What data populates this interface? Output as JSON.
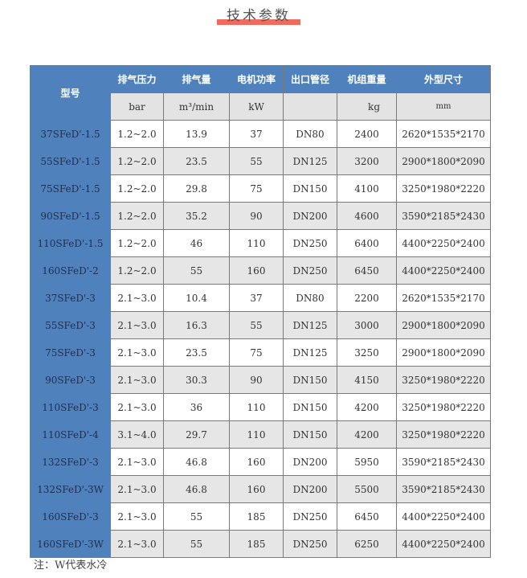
{
  "title": "技术参数",
  "colors": {
    "header": "#4f81bd",
    "accent": "#ee6b5d",
    "row_alt": "#e6e6e6"
  },
  "table": {
    "headers": [
      "型号",
      "排气压力",
      "排气量",
      "电机功率",
      "出口管径",
      "机组重量",
      "外型尺寸"
    ],
    "units": [
      "bar",
      "m³/min",
      "kW",
      "",
      "kg",
      "mm"
    ],
    "rows": [
      [
        "37SFeD'-1.5",
        "1.2~2.0",
        "13.9",
        "37",
        "DN80",
        "2400",
        "2620*1535*2170"
      ],
      [
        "55SFeD'-1.5",
        "1.2~2.0",
        "23.5",
        "55",
        "DN125",
        "3200",
        "2900*1800*2090"
      ],
      [
        "75SFeD'-1.5",
        "1.2~2.0",
        "29.8",
        "75",
        "DN150",
        "4100",
        "3250*1980*2220"
      ],
      [
        "90SFeD'-1.5",
        "1.2~2.0",
        "35.2",
        "90",
        "DN200",
        "4600",
        "3590*2185*2430"
      ],
      [
        "110SFeD'-1.5",
        "1.2~2.0",
        "46",
        "110",
        "DN250",
        "6400",
        "4400*2250*2400"
      ],
      [
        "160SFeD'-2",
        "1.2~2.0",
        "55",
        "160",
        "DN250",
        "6450",
        "4400*2250*2400"
      ],
      [
        "37SFeD'-3",
        "2.1~3.0",
        "10.4",
        "37",
        "DN80",
        "2200",
        "2620*1535*2170"
      ],
      [
        "55SFeD'-3",
        "2.1~3.0",
        "16.3",
        "55",
        "DN125",
        "3000",
        "2900*1800*2090"
      ],
      [
        "75SFeD'-3",
        "2.1~3.0",
        "23.5",
        "75",
        "DN125",
        "3250",
        "2900*1800*2090"
      ],
      [
        "90SFeD'-3",
        "2.1~3.0",
        "30.3",
        "90",
        "DN150",
        "4150",
        "3250*1980*2220"
      ],
      [
        "110SFeD'-3",
        "2.1~3.0",
        "36",
        "110",
        "DN150",
        "4200",
        "3250*1980*2220"
      ],
      [
        "110SFeD'-4",
        "3.1~4.0",
        "29.7",
        "110",
        "DN150",
        "4200",
        "3250*1980*2220"
      ],
      [
        "132SFeD'-3",
        "2.1~3.0",
        "46.8",
        "160",
        "DN200",
        "5950",
        "3590*2185*2430"
      ],
      [
        "132SFeD'-3W",
        "2.1~3.0",
        "46.8",
        "160",
        "DN200",
        "5500",
        "3590*2185*2430"
      ],
      [
        "160SFeD'-3",
        "2.1~3.0",
        "55",
        "185",
        "DN250",
        "6450",
        "4400*2250*2400"
      ],
      [
        "160SFeD'-3W",
        "2.1~3.0",
        "55",
        "185",
        "DN250",
        "6250",
        "4400*2250*2400"
      ]
    ]
  },
  "note": "注：W代表水冷"
}
